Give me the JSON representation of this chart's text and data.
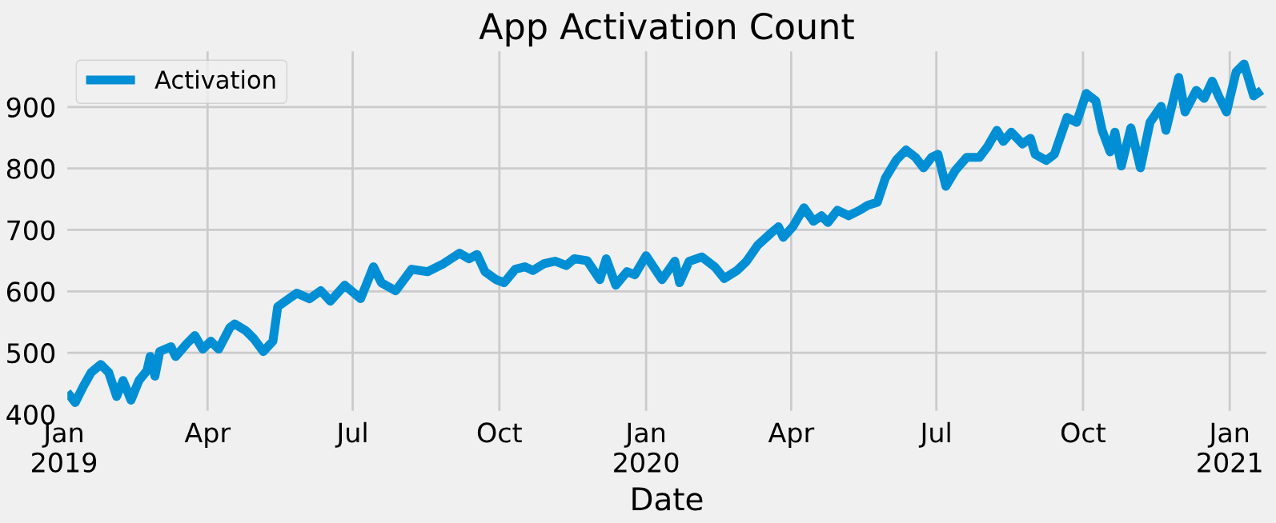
{
  "chart_data": {
    "type": "line",
    "title": "App Activation Count",
    "xlabel": "Date",
    "x": [
      "2019-01-03",
      "2019-01-08",
      "2019-01-13",
      "2019-01-18",
      "2019-01-24",
      "2019-01-29",
      "2019-02-03",
      "2019-02-07",
      "2019-02-12",
      "2019-02-17",
      "2019-02-22",
      "2019-02-24",
      "2019-02-27",
      "2019-03-02",
      "2019-03-09",
      "2019-03-12",
      "2019-03-19",
      "2019-03-24",
      "2019-03-29",
      "2019-04-03",
      "2019-04-08",
      "2019-04-15",
      "2019-04-18",
      "2019-04-25",
      "2019-04-30",
      "2019-05-06",
      "2019-05-12",
      "2019-05-15",
      "2019-05-22",
      "2019-05-27",
      "2019-06-04",
      "2019-06-11",
      "2019-06-17",
      "2019-06-26",
      "2019-07-06",
      "2019-07-14",
      "2019-07-19",
      "2019-07-28",
      "2019-08-07",
      "2019-08-17",
      "2019-08-27",
      "2019-09-06",
      "2019-09-12",
      "2019-09-17",
      "2019-09-22",
      "2019-09-29",
      "2019-10-04",
      "2019-10-11",
      "2019-10-17",
      "2019-10-22",
      "2019-10-29",
      "2019-11-05",
      "2019-11-12",
      "2019-11-17",
      "2019-11-25",
      "2019-12-03",
      "2019-12-07",
      "2019-12-13",
      "2019-12-20",
      "2019-12-25",
      "2020-01-01",
      "2020-01-11",
      "2020-01-19",
      "2020-01-22",
      "2020-01-28",
      "2020-02-05",
      "2020-02-13",
      "2020-02-19",
      "2020-02-27",
      "2020-03-04",
      "2020-03-11",
      "2020-03-19",
      "2020-03-24",
      "2020-03-27",
      "2020-04-02",
      "2020-04-09",
      "2020-04-15",
      "2020-04-20",
      "2020-04-24",
      "2020-04-30",
      "2020-05-07",
      "2020-05-14",
      "2020-05-19",
      "2020-05-25",
      "2020-05-30",
      "2020-06-06",
      "2020-06-12",
      "2020-06-18",
      "2020-06-23",
      "2020-06-28",
      "2020-07-02",
      "2020-07-07",
      "2020-07-13",
      "2020-07-20",
      "2020-07-28",
      "2020-08-02",
      "2020-08-08",
      "2020-08-12",
      "2020-08-17",
      "2020-08-24",
      "2020-08-29",
      "2020-09-01",
      "2020-09-08",
      "2020-09-13",
      "2020-09-17",
      "2020-09-21",
      "2020-09-27",
      "2020-10-03",
      "2020-10-09",
      "2020-10-13",
      "2020-10-18",
      "2020-10-21",
      "2020-10-25",
      "2020-10-31",
      "2020-11-06",
      "2020-11-12",
      "2020-11-19",
      "2020-11-22",
      "2020-11-30",
      "2020-12-04",
      "2020-12-11",
      "2020-12-16",
      "2020-12-21",
      "2020-12-25",
      "2020-12-30",
      "2021-01-05",
      "2021-01-10",
      "2021-01-16",
      "2021-01-21"
    ],
    "series": [
      {
        "name": "Activation",
        "color": "#008fd5",
        "values": [
          436,
          419,
          445,
          468,
          481,
          468,
          429,
          455,
          423,
          455,
          471,
          494,
          462,
          502,
          510,
          494,
          515,
          528,
          506,
          519,
          506,
          541,
          547,
          536,
          523,
          502,
          519,
          575,
          588,
          597,
          588,
          601,
          584,
          610,
          588,
          640,
          614,
          601,
          636,
          632,
          645,
          662,
          653,
          660,
          632,
          619,
          614,
          636,
          640,
          634,
          645,
          649,
          642,
          653,
          650,
          619,
          653,
          610,
          632,
          627,
          658,
          619,
          649,
          614,
          649,
          656,
          640,
          621,
          634,
          649,
          675,
          694,
          705,
          688,
          705,
          736,
          714,
          723,
          712,
          732,
          723,
          732,
          740,
          745,
          784,
          814,
          830,
          818,
          801,
          818,
          823,
          771,
          797,
          818,
          818,
          835,
          862,
          844,
          859,
          840,
          849,
          823,
          813,
          823,
          853,
          883,
          875,
          922,
          910,
          862,
          827,
          859,
          804,
          866,
          801,
          875,
          901,
          862,
          948,
          892,
          927,
          914,
          942,
          918,
          892,
          957,
          970,
          918,
          927
        ]
      }
    ],
    "xlim": [
      "2019-01-01",
      "2021-01-26"
    ],
    "xticks": [
      {
        "value": "2019-01-01",
        "label": "Jan\n2019"
      },
      {
        "value": "2019-04-01",
        "label": "Apr"
      },
      {
        "value": "2019-07-01",
        "label": "Jul"
      },
      {
        "value": "2019-10-01",
        "label": "Oct"
      },
      {
        "value": "2020-01-01",
        "label": "Jan\n2020"
      },
      {
        "value": "2020-04-01",
        "label": "Apr"
      },
      {
        "value": "2020-07-01",
        "label": "Jul"
      },
      {
        "value": "2020-10-01",
        "label": "Oct"
      },
      {
        "value": "2021-01-01",
        "label": "Jan\n2021"
      }
    ],
    "ylim": [
      400,
      996
    ],
    "yticks": [
      400,
      500,
      600,
      700,
      800,
      900
    ],
    "grid": true,
    "legend": "top left",
    "line_style": "solid",
    "marker": "none"
  }
}
